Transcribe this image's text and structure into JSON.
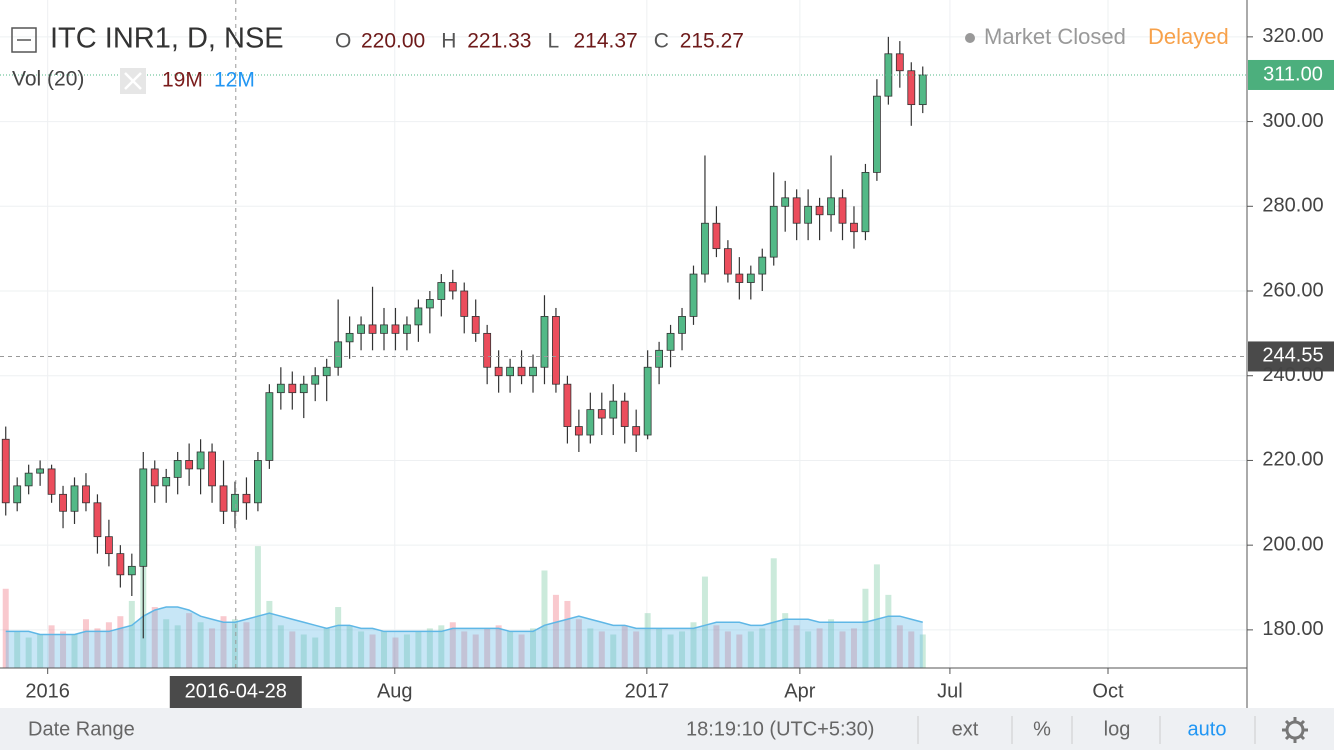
{
  "chart_data": {
    "type": "candlestick",
    "title": "ITC INR1, D, NSE",
    "ohlc_legend": [
      {
        "name": "O",
        "value": "220.00"
      },
      {
        "name": "H",
        "value": "221.33"
      },
      {
        "name": "L",
        "value": "214.37"
      },
      {
        "name": "C",
        "value": "215.27"
      }
    ],
    "volume_legend": {
      "name": "Vol (20)",
      "volume": "19M",
      "ma": "12M"
    },
    "status": "Market Closed",
    "feed": "Delayed",
    "up_color": "#53b987",
    "down_color": "#eb4d5c",
    "volume_color": "#5fb7e6",
    "open": [
      225,
      210,
      214,
      217,
      218,
      212,
      208,
      214,
      210,
      202,
      198,
      193,
      195,
      218,
      214,
      216,
      220,
      218,
      222,
      214,
      208,
      212,
      210,
      220,
      236,
      238,
      236,
      238,
      240,
      242,
      248,
      250,
      252,
      250,
      252,
      250,
      252,
      256,
      258,
      262,
      260,
      254,
      250,
      242,
      240,
      242,
      240,
      242,
      254,
      238,
      228,
      226,
      232,
      230,
      234,
      228,
      226,
      242,
      246,
      250,
      254,
      264,
      276,
      270,
      264,
      262,
      264,
      268,
      280,
      282,
      276,
      280,
      278,
      282,
      276,
      274,
      288,
      306,
      316,
      312,
      304
    ],
    "high": [
      228,
      216,
      219,
      220,
      219,
      214,
      216,
      217,
      212,
      206,
      200,
      198,
      222,
      220,
      218,
      222,
      224,
      225,
      224,
      220,
      215,
      216,
      222,
      238,
      242,
      241,
      240,
      242,
      244,
      258,
      254,
      254,
      261,
      256,
      256,
      254,
      258,
      260,
      264,
      265,
      262,
      258,
      252,
      246,
      244,
      246,
      245,
      259,
      256,
      240,
      232,
      236,
      236,
      238,
      236,
      232,
      246,
      248,
      252,
      256,
      266,
      292,
      280,
      272,
      268,
      266,
      270,
      288,
      286,
      284,
      284,
      282,
      292,
      284,
      280,
      290,
      310,
      320,
      319,
      314,
      313
    ],
    "low": [
      207,
      208,
      212,
      214,
      210,
      204,
      205,
      208,
      198,
      195,
      190,
      188,
      178,
      210,
      210,
      212,
      214,
      212,
      210,
      205,
      204,
      206,
      208,
      218,
      232,
      232,
      230,
      234,
      234,
      240,
      244,
      246,
      246,
      246,
      246,
      246,
      248,
      250,
      254,
      258,
      250,
      248,
      238,
      236,
      236,
      238,
      236,
      238,
      236,
      224,
      222,
      224,
      226,
      226,
      224,
      222,
      225,
      238,
      242,
      246,
      252,
      262,
      268,
      262,
      258,
      258,
      260,
      266,
      274,
      272,
      272,
      272,
      274,
      272,
      270,
      272,
      286,
      304,
      308,
      299,
      302
    ],
    "close": [
      210,
      214,
      217,
      218,
      212,
      208,
      214,
      210,
      202,
      198,
      193,
      195,
      218,
      214,
      216,
      220,
      218,
      222,
      214,
      208,
      212,
      210,
      220,
      236,
      238,
      236,
      238,
      240,
      242,
      248,
      250,
      252,
      250,
      252,
      250,
      252,
      256,
      258,
      262,
      260,
      254,
      250,
      242,
      240,
      242,
      240,
      242,
      254,
      238,
      228,
      226,
      232,
      230,
      234,
      228,
      226,
      242,
      246,
      250,
      254,
      264,
      276,
      270,
      264,
      262,
      264,
      268,
      280,
      282,
      276,
      280,
      278,
      282,
      276,
      274,
      288,
      306,
      316,
      312,
      304,
      311
    ],
    "volume": [
      26,
      12,
      10,
      11,
      14,
      12,
      11,
      16,
      13,
      15,
      17,
      22,
      45,
      20,
      16,
      14,
      18,
      15,
      13,
      17,
      16,
      15,
      40,
      22,
      14,
      12,
      11,
      10,
      13,
      20,
      14,
      12,
      11,
      12,
      10,
      11,
      12,
      13,
      14,
      15,
      12,
      11,
      13,
      14,
      12,
      11,
      13,
      32,
      24,
      22,
      16,
      13,
      12,
      11,
      14,
      12,
      18,
      13,
      11,
      12,
      15,
      30,
      14,
      12,
      11,
      12,
      13,
      36,
      18,
      14,
      12,
      13,
      16,
      12,
      13,
      26,
      34,
      24,
      14,
      12,
      11
    ],
    "volume_ma": [
      12,
      12,
      12,
      11,
      11,
      11,
      11,
      12,
      12,
      12,
      13,
      14,
      17,
      19,
      20,
      20,
      19,
      17,
      16,
      15,
      15,
      16,
      17,
      18,
      17,
      16,
      15,
      14,
      13,
      14,
      14,
      13,
      13,
      12,
      12,
      12,
      12,
      12,
      12,
      13,
      13,
      13,
      13,
      13,
      12,
      12,
      12,
      14,
      15,
      16,
      17,
      16,
      15,
      14,
      14,
      13,
      13,
      13,
      13,
      13,
      13,
      14,
      15,
      15,
      15,
      14,
      14,
      15,
      16,
      16,
      16,
      15,
      15,
      15,
      15,
      15,
      16,
      17,
      17,
      16,
      15
    ],
    "xlim": [
      -0.5,
      108.2
    ],
    "xticks": [
      {
        "value": 3.66,
        "label": "2016"
      },
      {
        "value": 33.94,
        "label": "Aug"
      },
      {
        "value": 55.93,
        "label": "2017"
      },
      {
        "value": 69.28,
        "label": "Apr"
      },
      {
        "value": 82.37,
        "label": "Jul"
      },
      {
        "value": 96.16,
        "label": "Oct"
      }
    ],
    "ylim": [
      171,
      328.7
    ],
    "yticks": [
      {
        "value": 180,
        "label": "180.00"
      },
      {
        "value": 200,
        "label": "200.00"
      },
      {
        "value": 220,
        "label": "220.00"
      },
      {
        "value": 240,
        "label": "240.00"
      },
      {
        "value": 260,
        "label": "260.00"
      },
      {
        "value": 280,
        "label": "280.00"
      },
      {
        "value": 300,
        "label": "300.00"
      },
      {
        "value": 320,
        "label": "320.00"
      }
    ],
    "vlim": [
      0,
      42
    ],
    "last_price": {
      "value": 311,
      "label": "311.00"
    },
    "crosshair": {
      "x": {
        "value": 20.07,
        "label": "2016-04-28"
      },
      "y": {
        "value": 244.55,
        "label": "244.55"
      }
    },
    "grid": true
  },
  "toolbar": {
    "date_range": "Date Range",
    "time": "18:19:10 (UTC+5:30)",
    "buttons": [
      "ext",
      "%",
      "log",
      "auto"
    ]
  }
}
